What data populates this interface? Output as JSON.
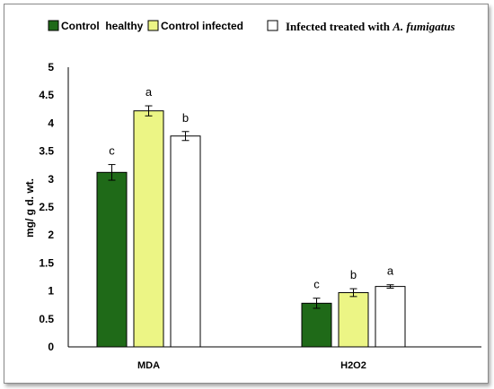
{
  "chart_data": {
    "type": "bar",
    "ylabel": "mg/ g d. wt.",
    "ylim": [
      0,
      5
    ],
    "yticks": [
      "0",
      "0.5",
      "1",
      "1.5",
      "2",
      "2.5",
      "3",
      "3.5",
      "4",
      "4.5",
      "5"
    ],
    "categories": [
      "MDA",
      "H2O2"
    ],
    "legend_position": "top",
    "grid": false,
    "series": [
      {
        "name": "Control  healthy",
        "color": "#1f6a18",
        "values": [
          3.12,
          0.78
        ],
        "errors": [
          0.14,
          0.09
        ],
        "letters": [
          "c",
          "c"
        ]
      },
      {
        "name": "Control infected",
        "color": "#ecf585",
        "values": [
          4.22,
          0.97
        ],
        "errors": [
          0.09,
          0.07
        ],
        "letters": [
          "a",
          "b"
        ]
      },
      {
        "name": "Infected treated with ",
        "name_italic": "A. fumigatus",
        "color": "#ffffff",
        "values": [
          3.77,
          1.08
        ],
        "errors": [
          0.08,
          0.03
        ],
        "letters": [
          "b",
          "a"
        ]
      }
    ]
  }
}
